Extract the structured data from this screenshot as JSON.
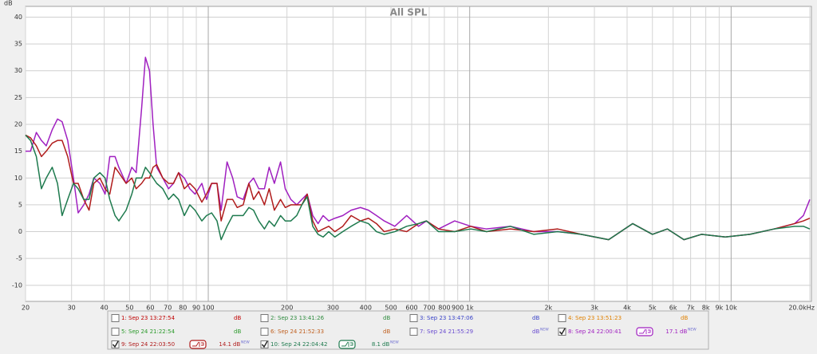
{
  "chart_data": {
    "type": "line",
    "title": "All SPL",
    "y_label": "dB",
    "log_x": true,
    "grid": true,
    "xlim": [
      20,
      20000
    ],
    "ylim": [
      -13,
      42
    ],
    "yticks": [
      -10,
      -5,
      0,
      5,
      10,
      15,
      20,
      25,
      30,
      35,
      40
    ],
    "xticks": [
      20,
      30,
      40,
      50,
      60,
      70,
      80,
      90,
      100,
      200,
      300,
      400,
      500,
      600,
      700,
      800,
      900,
      {
        "value": 1000,
        "label": "1k"
      },
      {
        "value": 2000,
        "label": "2k"
      },
      {
        "value": 3000,
        "label": "3k"
      },
      {
        "value": 4000,
        "label": "4k"
      },
      {
        "value": 5000,
        "label": "5k"
      },
      {
        "value": 6000,
        "label": "6k"
      },
      {
        "value": 7000,
        "label": "7k"
      },
      {
        "value": 8000,
        "label": "8k"
      },
      {
        "value": 9000,
        "label": "9k"
      },
      {
        "value": 10000,
        "label": "10k"
      },
      {
        "value": 20000,
        "label": "20.0kHz"
      }
    ],
    "x": [
      20,
      20.9,
      22,
      23,
      24,
      25.3,
      26.5,
      27.6,
      29,
      30.5,
      31.8,
      33.4,
      35,
      36.5,
      38.5,
      40.3,
      42,
      44,
      45.5,
      48.5,
      51,
      53,
      55.6,
      57.5,
      59.6,
      61.5,
      63.5,
      67,
      70.5,
      73.6,
      77,
      81,
      85,
      89,
      94.5,
      98.5,
      103,
      108,
      112,
      118,
      124,
      129,
      136,
      143,
      149,
      156,
      164,
      171,
      179,
      189,
      197,
      207,
      218,
      228,
      239,
      251,
      263,
      275,
      289,
      305,
      327,
      352,
      382,
      410,
      440,
      471,
      517,
      574,
      637,
      683,
      760,
      876,
      1010,
      1160,
      1430,
      1760,
      2170,
      2670,
      3400,
      4200,
      5000,
      5700,
      6600,
      7700,
      9500,
      11800,
      14600,
      17500,
      18900,
      20000
    ],
    "series": [
      {
        "name": "1: Sep 23 13:27:54",
        "color": "#c00000",
        "checked": false,
        "unit": "dB"
      },
      {
        "name": "2: Sep 23 13:41:26",
        "color": "#2e8b3e",
        "checked": false,
        "unit": "dB"
      },
      {
        "name": "3: Sep 23 13:47:06",
        "color": "#3a44c8",
        "checked": false,
        "unit": "dB"
      },
      {
        "name": "4: Sep 23 13:51:23",
        "color": "#e08000",
        "checked": false,
        "unit": "dB"
      },
      {
        "name": "5: Sep 24 21:22:54",
        "color": "#2a9a2a",
        "checked": false,
        "unit": "dB"
      },
      {
        "name": "6: Sep 24 21:52:33",
        "color": "#c06020",
        "checked": false,
        "unit": "dB"
      },
      {
        "name": "7: Sep 24 21:55:29",
        "color": "#6a4cd0",
        "checked": false,
        "unit": "dB",
        "tag": "NEW"
      },
      {
        "name": "8: Sep 24 22:00:41",
        "color": "#a020c0",
        "checked": true,
        "unit": "dB",
        "tag": "NEW",
        "level": 17.1,
        "values": [
          15,
          15,
          18.5,
          17,
          16,
          19,
          21,
          20.5,
          17,
          10,
          3.5,
          5,
          7,
          10,
          9,
          7,
          14,
          14,
          12,
          9,
          12,
          11,
          23,
          32.5,
          30,
          20,
          12,
          10,
          8,
          9,
          11,
          10,
          8,
          7,
          9,
          6,
          9,
          9,
          4,
          13,
          10,
          6.5,
          6,
          9,
          10,
          8,
          8,
          12,
          9,
          13,
          8,
          6,
          5,
          6,
          7,
          3,
          1.5,
          3,
          2,
          2.5,
          3,
          4,
          4.5,
          4,
          3,
          2,
          1,
          3,
          1,
          2,
          0.5,
          2,
          1,
          0.5,
          1,
          0,
          0,
          -0.5,
          -1.5,
          1.5,
          -0.5,
          0.5,
          -1.5,
          -0.5,
          -1,
          -0.5,
          0.5,
          1.5,
          3,
          6
        ]
      },
      {
        "name": "9: Sep 24 22:03:50",
        "color": "#b01c1c",
        "checked": true,
        "unit": "dB",
        "tag": "NEW",
        "level": 14.1,
        "values": [
          18,
          17.5,
          16,
          14,
          15,
          16.5,
          17,
          17,
          14,
          9,
          9,
          6,
          4,
          9,
          10,
          8,
          7,
          12,
          11,
          9,
          10,
          8,
          9,
          10,
          10,
          12,
          12.5,
          10,
          9,
          9,
          11,
          8,
          9,
          8,
          5.5,
          7,
          9,
          9,
          2,
          6,
          6,
          4.5,
          5,
          9,
          6,
          7.5,
          5,
          8,
          4,
          6,
          4.5,
          5,
          5,
          5,
          7,
          2,
          0,
          0.5,
          1,
          0,
          1,
          3,
          2,
          2.5,
          1.5,
          0,
          0.5,
          0,
          1.5,
          2,
          0.5,
          0,
          1,
          0,
          0.5,
          0,
          0.5,
          -0.5,
          -1.5,
          1.5,
          -0.5,
          0.5,
          -1.5,
          -0.5,
          -1,
          -0.5,
          0.5,
          1.5,
          2,
          2.5
        ]
      },
      {
        "name": "10: Sep 24 22:04:42",
        "color": "#1e7a4e",
        "checked": true,
        "unit": "dB",
        "tag": "NEW",
        "level": 8.1,
        "values": [
          18,
          17,
          14,
          8,
          10,
          12,
          9,
          3,
          6,
          9,
          8,
          6,
          6,
          10,
          11,
          10,
          6,
          3,
          2,
          4,
          7,
          10,
          10,
          12,
          11,
          10,
          9,
          8,
          6,
          7,
          6,
          3,
          5,
          4,
          2,
          3,
          3.5,
          2,
          -1.5,
          1,
          3,
          3,
          3,
          4.5,
          4,
          2,
          0.5,
          2,
          1,
          3,
          2,
          2,
          3,
          5,
          6.5,
          1,
          -0.5,
          -1,
          0,
          -1,
          0,
          1,
          2,
          1.5,
          0,
          -0.5,
          0,
          1,
          1.5,
          2,
          0,
          0,
          0.5,
          0,
          1,
          -0.5,
          0,
          -0.5,
          -1.5,
          1.5,
          -0.5,
          0.5,
          -1.5,
          -0.5,
          -1,
          -0.5,
          0.5,
          1,
          1,
          0.5
        ]
      }
    ]
  }
}
